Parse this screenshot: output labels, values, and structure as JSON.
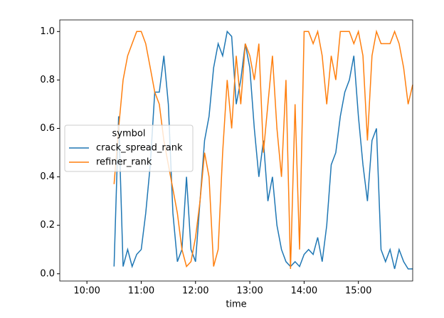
{
  "chart_data": {
    "type": "line",
    "x_label": "time",
    "x": [
      "10:30",
      "10:35",
      "10:40",
      "10:45",
      "10:50",
      "10:55",
      "11:00",
      "11:05",
      "11:10",
      "11:15",
      "11:20",
      "11:25",
      "11:30",
      "11:35",
      "11:40",
      "11:45",
      "11:50",
      "11:55",
      "12:00",
      "12:05",
      "12:10",
      "12:15",
      "12:20",
      "12:25",
      "12:30",
      "12:35",
      "12:40",
      "12:45",
      "12:50",
      "12:55",
      "13:00",
      "13:05",
      "13:10",
      "13:15",
      "13:20",
      "13:25",
      "13:30",
      "13:35",
      "13:40",
      "13:45",
      "13:50",
      "13:55",
      "14:00",
      "14:05",
      "14:10",
      "14:15",
      "14:20",
      "14:25",
      "14:30",
      "14:35",
      "14:40",
      "14:45",
      "14:50",
      "14:55",
      "15:00",
      "15:05",
      "15:10",
      "15:15",
      "15:20",
      "15:25",
      "15:30",
      "15:35",
      "15:40",
      "15:45",
      "15:50",
      "15:55",
      "16:00"
    ],
    "series": [
      {
        "name": "crack_spread_rank",
        "color": "#1f77b4",
        "values": [
          0.03,
          0.65,
          0.03,
          0.1,
          0.03,
          0.08,
          0.1,
          0.25,
          0.45,
          0.75,
          0.75,
          0.9,
          0.7,
          0.25,
          0.05,
          0.1,
          0.4,
          0.1,
          0.05,
          0.3,
          0.55,
          0.65,
          0.85,
          0.95,
          0.9,
          1.0,
          0.98,
          0.7,
          0.8,
          0.95,
          0.85,
          0.6,
          0.4,
          0.55,
          0.3,
          0.4,
          0.2,
          0.1,
          0.05,
          0.03,
          0.05,
          0.03,
          0.08,
          0.1,
          0.08,
          0.15,
          0.05,
          0.2,
          0.45,
          0.5,
          0.65,
          0.75,
          0.8,
          0.9,
          0.65,
          0.45,
          0.3,
          0.55,
          0.6,
          0.1,
          0.05,
          0.1,
          0.02,
          0.1,
          0.05,
          0.02,
          0.02
        ]
      },
      {
        "name": "refiner_rank",
        "color": "#ff7f0e",
        "values": [
          0.37,
          0.6,
          0.8,
          0.9,
          0.95,
          1.0,
          1.0,
          0.95,
          0.85,
          0.75,
          0.7,
          0.55,
          0.45,
          0.35,
          0.25,
          0.1,
          0.03,
          0.05,
          0.15,
          0.3,
          0.5,
          0.4,
          0.03,
          0.1,
          0.5,
          0.8,
          0.6,
          0.9,
          0.7,
          0.95,
          0.9,
          0.8,
          0.95,
          0.5,
          0.7,
          0.9,
          0.6,
          0.4,
          0.8,
          0.02,
          0.7,
          0.1,
          1.0,
          1.0,
          0.95,
          1.0,
          0.9,
          0.7,
          0.9,
          0.8,
          1.0,
          1.0,
          1.0,
          0.95,
          1.0,
          0.9,
          0.55,
          0.9,
          1.0,
          0.95,
          0.95,
          0.95,
          1.0,
          0.95,
          0.85,
          0.7,
          0.78
        ]
      }
    ],
    "legend_title": "symbol",
    "legend": "center left",
    "xlim": [
      "09:30",
      "16:00"
    ],
    "xticks": [
      "10:00",
      "11:00",
      "12:00",
      "13:00",
      "14:00",
      "15:00"
    ],
    "ylim": [
      -0.03,
      1.048
    ],
    "yticks": [
      {
        "value": 0,
        "label": "0.0"
      },
      0.2,
      0.4,
      0.6,
      0.8,
      {
        "value": 1,
        "label": "1.0"
      }
    ]
  }
}
